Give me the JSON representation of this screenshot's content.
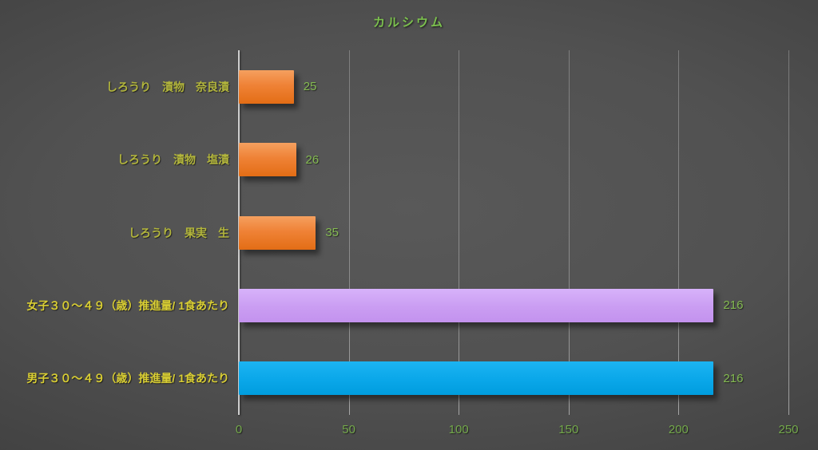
{
  "title": "カルシウム",
  "colors": {
    "title_green": "#7cc14e",
    "tick_green": "#74a94b",
    "value_green": "#84bb51",
    "category_label_olive": "#b2b53c",
    "category_label_yellow": "#d9ce33",
    "bar_orange": "#ed7d31",
    "bar_purple": "#ca9df2",
    "bar_blue": "#0aa7e9",
    "axis_line": "#cfcfcf",
    "background_center": "#595959",
    "background_edge": "#262626"
  },
  "chart_data": {
    "type": "bar",
    "orientation": "horizontal",
    "title": "カルシウム",
    "categories": [
      "しろうり　漬物　奈良漬",
      "しろうり　漬物　塩漬",
      "しろうり　果実　生",
      "女子３０～４９（歳）推進量/ 1食あたり",
      "男子３０～４９（歳）推進量/ 1食あたり"
    ],
    "values": [
      25,
      26,
      35,
      216,
      216
    ],
    "value_labels": [
      "25",
      "26",
      "35",
      "216",
      "216"
    ],
    "bar_color_names": [
      "orange",
      "orange",
      "orange",
      "purple",
      "blue"
    ],
    "category_label_colors": [
      "#b2b53c",
      "#b2b53c",
      "#b2b53c",
      "#d9ce33",
      "#d9ce33"
    ],
    "xlabel": "",
    "ylabel": "",
    "xlim": [
      0,
      250
    ],
    "x_ticks": [
      "0",
      "50",
      "100",
      "150",
      "200",
      "250"
    ],
    "grid": true,
    "legend": false
  }
}
